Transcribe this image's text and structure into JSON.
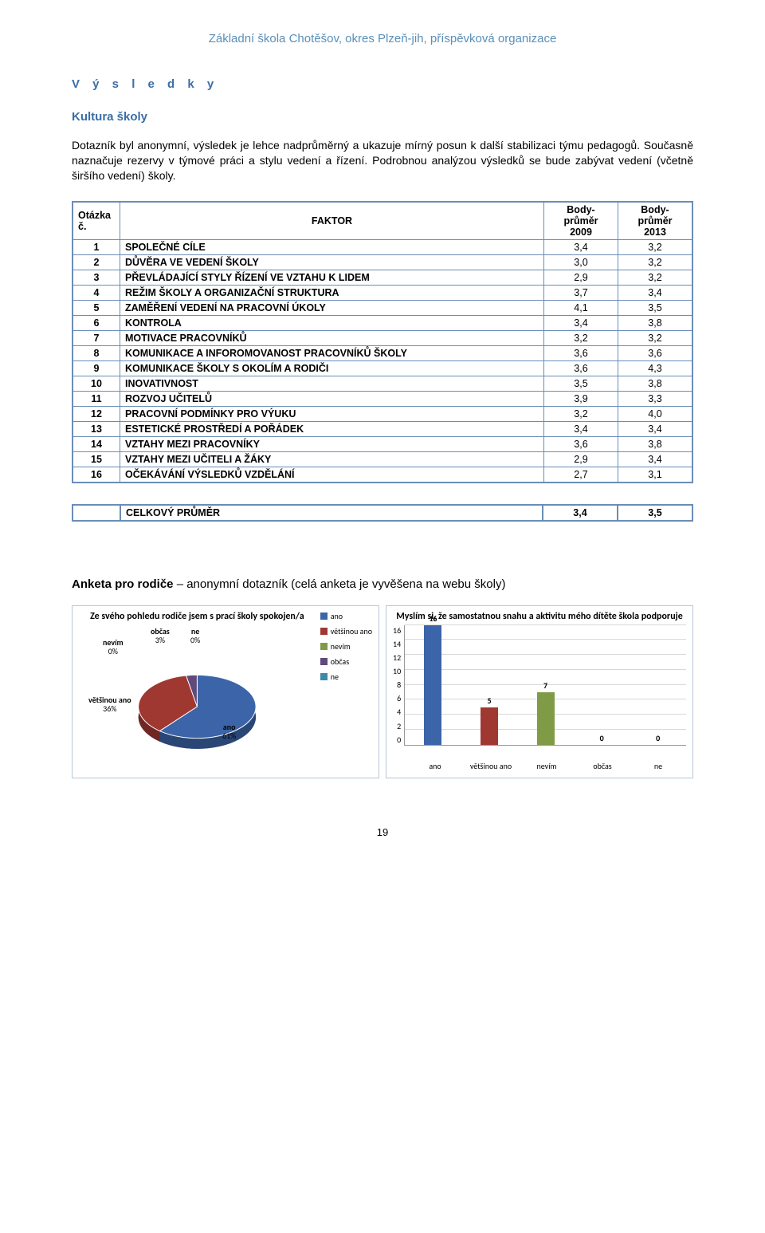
{
  "header": "Základní škola Chotěšov, okres Plzeň-jih, příspěvková organizace",
  "h_results": "V ý s l e d k y",
  "h_kultura": "Kultura školy",
  "paragraph": "Dotazník byl anonymní, výsledek je lehce nadprůměrný a ukazuje mírný posun k další stabilizaci týmu pedagogů. Současně naznačuje rezervy v týmové práci a stylu vedení a řízení. Podrobnou analýzou výsledků se bude zabývat vedení (včetně širšího vedení) školy.",
  "table": {
    "head": [
      "Otázka č.",
      "FAKTOR",
      "Body-průměr 2009",
      "Body-průměr 2013"
    ],
    "rows": [
      [
        "1",
        "SPOLEČNÉ CÍLE",
        "3,4",
        "3,2"
      ],
      [
        "2",
        "DŮVĚRA VE VEDENÍ ŠKOLY",
        "3,0",
        "3,2"
      ],
      [
        "3",
        "PŘEVLÁDAJÍCÍ STYLY  ŘÍZENÍ VE VZTAHU K LIDEM",
        "2,9",
        "3,2"
      ],
      [
        "4",
        "REŽIM ŠKOLY A ORGANIZAČNÍ STRUKTURA",
        "3,7",
        "3,4"
      ],
      [
        "5",
        "ZAMĚŘENÍ VEDENÍ NA PRACOVNÍ ÚKOLY",
        "4,1",
        "3,5"
      ],
      [
        "6",
        "KONTROLA",
        "3,4",
        "3,8"
      ],
      [
        "7",
        "MOTIVACE PRACOVNÍKŮ",
        "3,2",
        "3,2"
      ],
      [
        "8",
        "KOMUNIKACE A INFOROMOVANOST PRACOVNÍKŮ ŠKOLY",
        "3,6",
        "3,6"
      ],
      [
        "9",
        "KOMUNIKACE ŠKOLY S OKOLÍM A RODIČI",
        "3,6",
        "4,3"
      ],
      [
        "10",
        "INOVATIVNOST",
        "3,5",
        "3,8"
      ],
      [
        "11",
        "ROZVOJ UČITELŮ",
        "3,9",
        "3,3"
      ],
      [
        "12",
        "PRACOVNÍ PODMÍNKY PRO VÝUKU",
        "3,2",
        "4,0"
      ],
      [
        "13",
        "ESTETICKÉ PROSTŘEDÍ A POŘÁDEK",
        "3,4",
        "3,4"
      ],
      [
        "14",
        "VZTAHY MEZI PRACOVNÍKY",
        "3,6",
        "3,8"
      ],
      [
        "15",
        "VZTAHY MEZI UČITELI A ŽÁKY",
        "2,9",
        "3,4"
      ],
      [
        "16",
        "OČEKÁVÁNÍ VÝSLEDKŮ VZDĚLÁNÍ",
        "2,7",
        "3,1"
      ]
    ]
  },
  "summary": {
    "label": "CELKOVÝ PRŮMĚR",
    "v1": "3,4",
    "v2": "3,5"
  },
  "anketa": {
    "bold": "Anketa pro rodiče",
    "rest": " – anonymní dotazník   (celá anketa je vyvěšena na webu školy)"
  },
  "pie": {
    "title": "Ze svého pohledu rodiče jsem s prací školy spokojen/a",
    "slices": [
      {
        "label": "ano",
        "pct": 61,
        "color": "#3c64a8",
        "lab_xy": [
          180,
          140
        ]
      },
      {
        "label": "většinou ano",
        "pct": 36,
        "color": "#a03832",
        "lab_xy": [
          12,
          106
        ]
      },
      {
        "label": "nevím",
        "pct": 0,
        "color": "#7f9b46",
        "lab_xy": [
          30,
          34
        ]
      },
      {
        "label": "občas",
        "pct": 3,
        "color": "#5f4a7a",
        "lab_xy": [
          90,
          20
        ]
      },
      {
        "label": "ne",
        "pct": 0,
        "color": "#3b8aa8",
        "lab_xy": [
          140,
          20
        ]
      }
    ],
    "legend": [
      {
        "label": "ano",
        "color": "#3c64a8"
      },
      {
        "label": "většinou ano",
        "color": "#a03832"
      },
      {
        "label": "nevím",
        "color": "#7f9b46"
      },
      {
        "label": "občas",
        "color": "#5f4a7a"
      },
      {
        "label": "ne",
        "color": "#3b8aa8"
      }
    ]
  },
  "bar": {
    "title": "Myslím si, že samostatnou snahu a aktivitu mého dítěte škola podporuje",
    "ymax": 16,
    "ytick_step": 2,
    "categories": [
      "ano",
      "většinou ano",
      "nevím",
      "občas",
      "ne"
    ],
    "values": [
      16,
      5,
      7,
      0,
      0
    ],
    "colors": [
      "#3c64a8",
      "#a03832",
      "#7f9b46",
      "#5f4a7a",
      "#3b8aa8"
    ],
    "grid_color": "#d8d8d8"
  },
  "page_number": "19"
}
